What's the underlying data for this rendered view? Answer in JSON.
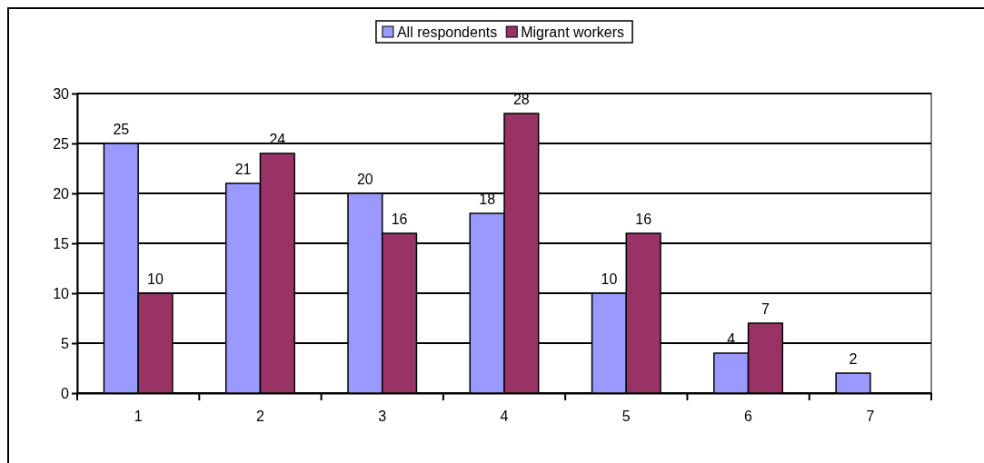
{
  "chart_data": {
    "type": "bar",
    "categories": [
      "1",
      "2",
      "3",
      "4",
      "5",
      "6",
      "7"
    ],
    "series": [
      {
        "name": "All respondents",
        "color": "#9999ff",
        "values": [
          25,
          21,
          20,
          18,
          10,
          4,
          2
        ]
      },
      {
        "name": "Migrant workers",
        "color": "#993366",
        "values": [
          10,
          24,
          16,
          28,
          16,
          7,
          null
        ]
      }
    ],
    "ylim": [
      0,
      30
    ],
    "yticks": [
      0,
      5,
      10,
      15,
      20,
      25,
      30
    ],
    "grid": "y",
    "legend": "top",
    "data_labels": true
  }
}
